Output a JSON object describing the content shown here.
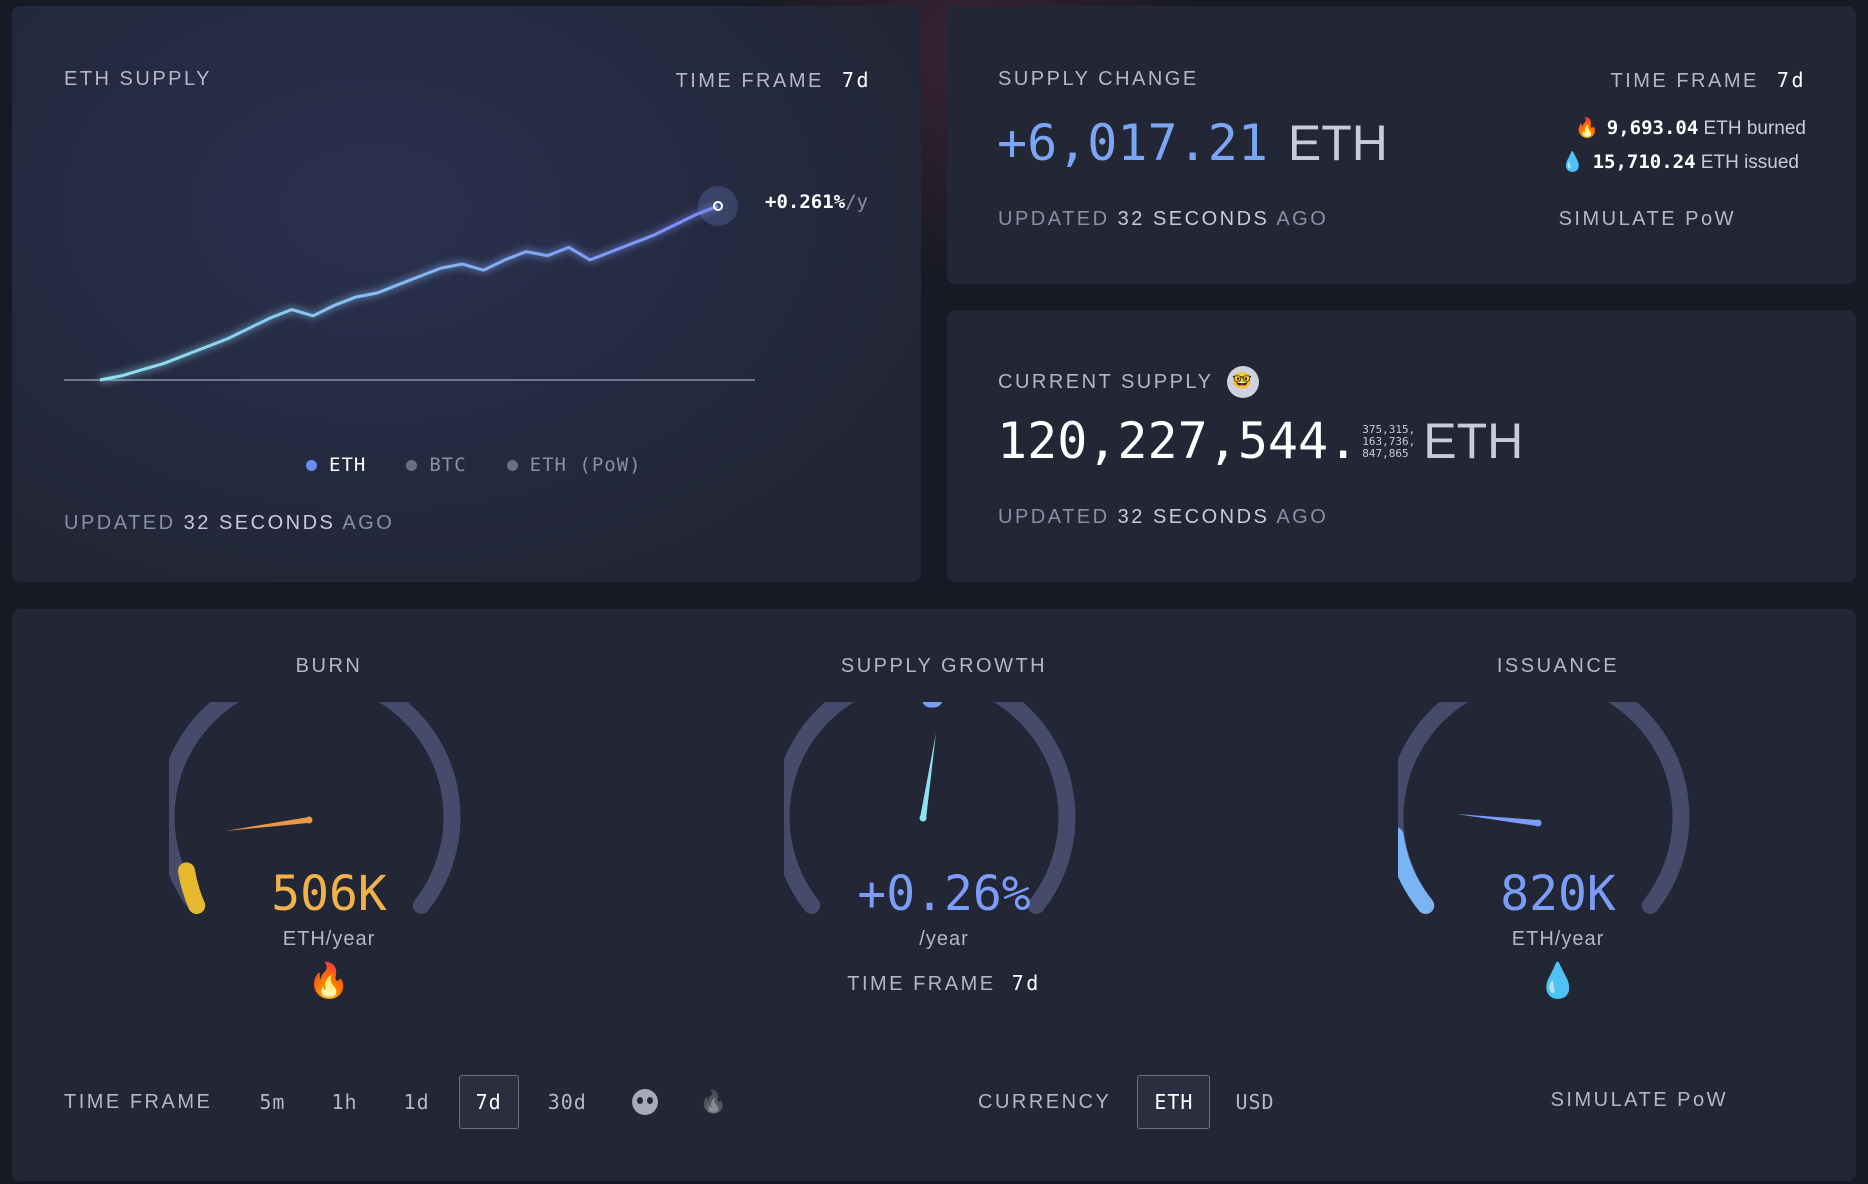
{
  "supply_panel": {
    "title": "ETH SUPPLY",
    "time_frame_label": "TIME FRAME",
    "time_frame_value": "7d",
    "rate_label": "+0.261%",
    "rate_suffix": "/y",
    "legend": [
      {
        "label": "ETH",
        "color": "#6c8cf5",
        "active": true
      },
      {
        "label": "BTC",
        "color": "#6a6f85",
        "active": false
      },
      {
        "label": "ETH (PoW)",
        "color": "#6a6f85",
        "active": false
      }
    ],
    "updated_prefix": "UPDATED",
    "updated_value": "32 SECONDS",
    "updated_suffix": "AGO",
    "chart_data": {
      "type": "line",
      "series": [
        {
          "name": "ETH",
          "values": [
            0,
            2,
            5,
            8,
            12,
            16,
            20,
            25,
            30,
            34,
            31,
            36,
            40,
            42,
            46,
            50,
            54,
            56,
            53,
            58,
            62,
            60,
            64,
            58,
            62,
            66,
            70,
            75,
            80,
            84
          ]
        }
      ]
    }
  },
  "change_panel": {
    "title": "SUPPLY CHANGE",
    "time_frame_label": "TIME FRAME",
    "time_frame_value": "7d",
    "value": "+6,017.21",
    "unit": "ETH",
    "burned_value": "9,693.04",
    "burned_label": "ETH burned",
    "issued_value": "15,710.24",
    "issued_label": "ETH issued",
    "updated_prefix": "UPDATED",
    "updated_value": "32 SECONDS",
    "updated_suffix": "AGO",
    "simulate_label": "SIMULATE PoW"
  },
  "current_panel": {
    "title": "CURRENT SUPPLY",
    "value_main": "120,227,544.",
    "decimals_1": "375,315,",
    "decimals_2": "163,736,",
    "decimals_3": "847,865",
    "unit": "ETH",
    "updated_prefix": "UPDATED",
    "updated_value": "32 SECONDS",
    "updated_suffix": "AGO"
  },
  "gauges": {
    "burn": {
      "title": "BURN",
      "value": "506K",
      "unit": "ETH/year",
      "color": "#f0b24a",
      "level": 0.08
    },
    "growth": {
      "title": "SUPPLY GROWTH",
      "value": "+0.26%",
      "unit": "/year",
      "color": "#7b9cf8",
      "level": 0.53,
      "time_frame_label": "TIME FRAME",
      "time_frame_value": "7d"
    },
    "issuance": {
      "title": "ISSUANCE",
      "value": "820K",
      "unit": "ETH/year",
      "color": "#7b9cf8",
      "level": 0.12
    }
  },
  "controls": {
    "time_frame_label": "TIME FRAME",
    "time_frames": [
      "5m",
      "1h",
      "1d",
      "7d",
      "30d"
    ],
    "active_time_frame": "7d",
    "currency_label": "CURRENCY",
    "currencies": [
      "ETH",
      "USD"
    ],
    "active_currency": "ETH",
    "simulate_label": "SIMULATE PoW"
  }
}
